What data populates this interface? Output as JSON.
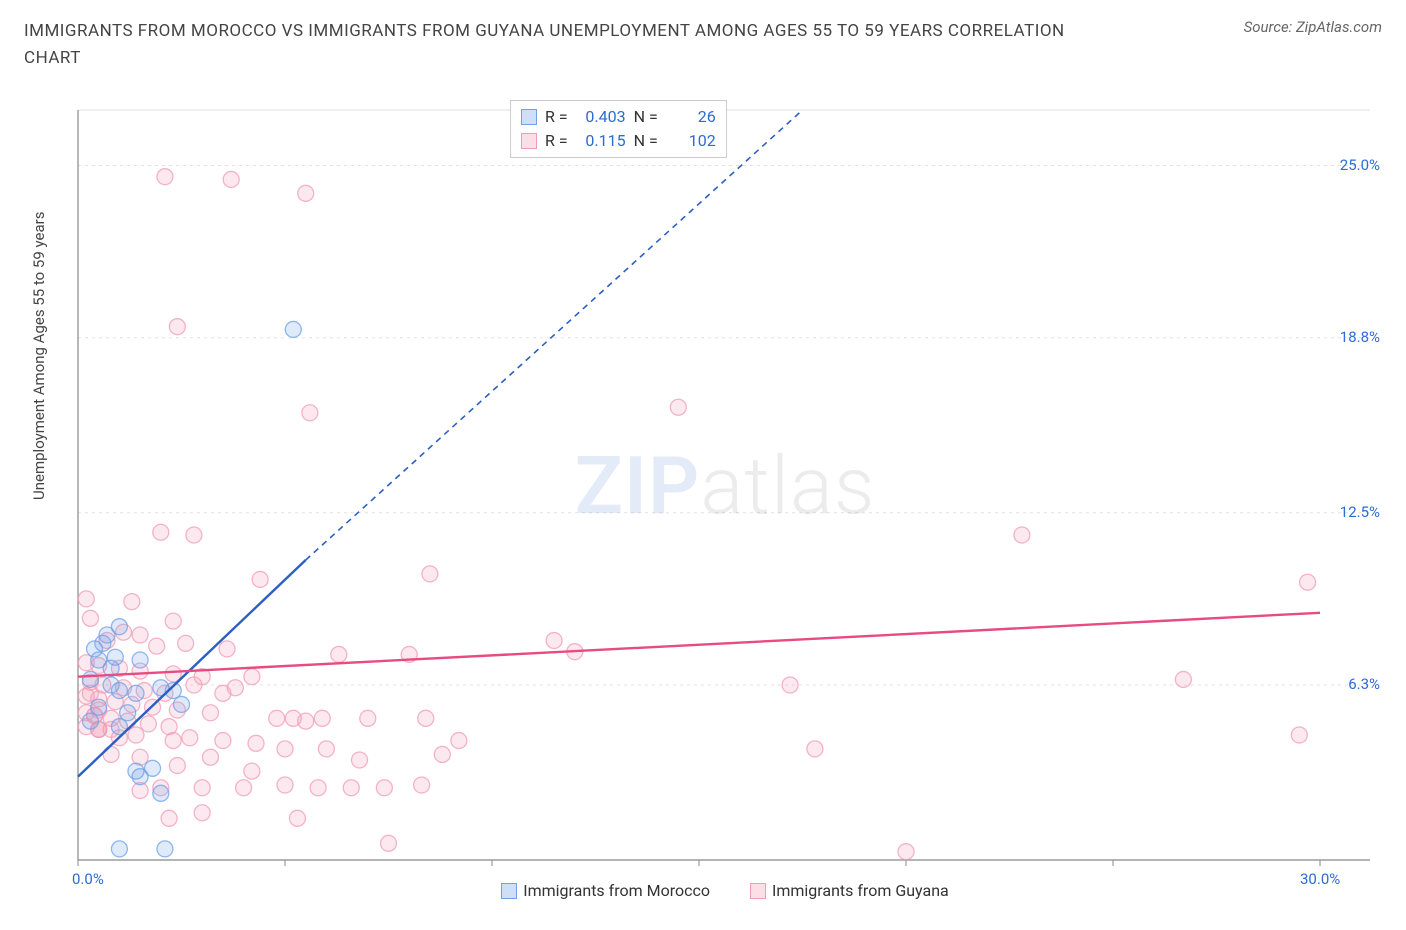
{
  "title": "IMMIGRANTS FROM MOROCCO VS IMMIGRANTS FROM GUYANA UNEMPLOYMENT AMONG AGES 55 TO 59 YEARS CORRELATION CHART",
  "source": "Source: ZipAtlas.com",
  "y_axis_label": "Unemployment Among Ages 55 to 59 years",
  "watermark": {
    "bold": "ZIP",
    "light": "atlas"
  },
  "chart": {
    "type": "scatter",
    "background_color": "#ffffff",
    "grid_color": "#e2e2e2",
    "axis_color": "#888888",
    "tick_label_color": "#2b6cd4",
    "xlim": [
      0,
      30
    ],
    "ylim": [
      0,
      27
    ],
    "x_ticks": [
      0,
      5,
      10,
      15,
      20,
      25,
      30
    ],
    "x_tick_labels": [
      "0.0%",
      "",
      "",
      "",
      "",
      "",
      "30.0%"
    ],
    "y_grid_values": [
      6.3,
      12.5,
      18.8,
      25.0
    ],
    "y_tick_labels": [
      "6.3%",
      "12.5%",
      "18.8%",
      "25.0%"
    ],
    "marker_radius": 8,
    "marker_fill_opacity": 0.22,
    "marker_stroke_width": 1.3,
    "trend_line_width": 2.4,
    "trend_dash": "6,5"
  },
  "series": [
    {
      "name": "Immigrants from Morocco",
      "color": "#6f9fe8",
      "line_color": "#2b5fc4",
      "stats": {
        "R": "0.403",
        "N": "26"
      },
      "trend": {
        "x1": 0,
        "y1": 3.0,
        "x2_solid": 5.5,
        "y2_solid": 10.8,
        "x2": 17.5,
        "y2": 27.0
      },
      "points": [
        [
          5.2,
          19.1
        ],
        [
          1.0,
          8.4
        ],
        [
          0.7,
          8.1
        ],
        [
          0.6,
          7.8
        ],
        [
          0.9,
          7.3
        ],
        [
          0.5,
          7.2
        ],
        [
          1.5,
          7.2
        ],
        [
          0.3,
          6.5
        ],
        [
          0.8,
          6.3
        ],
        [
          1.0,
          6.1
        ],
        [
          1.4,
          6.0
        ],
        [
          2.3,
          6.1
        ],
        [
          2.5,
          5.6
        ],
        [
          0.5,
          5.5
        ],
        [
          0.3,
          5.0
        ],
        [
          1.4,
          3.2
        ],
        [
          1.5,
          3.0
        ],
        [
          1.8,
          3.3
        ],
        [
          2.0,
          2.4
        ],
        [
          1.0,
          0.4
        ],
        [
          2.1,
          0.4
        ],
        [
          1.0,
          4.8
        ],
        [
          2.0,
          6.2
        ],
        [
          0.8,
          6.9
        ],
        [
          0.4,
          7.6
        ],
        [
          1.2,
          5.3
        ]
      ]
    },
    {
      "name": "Immigrants from Guyana",
      "color": "#f29bb5",
      "line_color": "#e74b82",
      "stats": {
        "R": "0.115",
        "N": "102"
      },
      "trend": {
        "x1": 0,
        "y1": 6.6,
        "x2_solid": 30,
        "y2_solid": 8.9,
        "x2": 30,
        "y2": 8.9
      },
      "points": [
        [
          2.1,
          24.6
        ],
        [
          3.7,
          24.5
        ],
        [
          5.5,
          24.0
        ],
        [
          2.4,
          19.2
        ],
        [
          5.6,
          16.1
        ],
        [
          14.5,
          16.3
        ],
        [
          2.0,
          11.8
        ],
        [
          2.8,
          11.7
        ],
        [
          22.8,
          11.7
        ],
        [
          29.7,
          10.0
        ],
        [
          26.7,
          6.5
        ],
        [
          17.2,
          6.3
        ],
        [
          20.0,
          0.3
        ],
        [
          29.5,
          4.5
        ],
        [
          17.8,
          4.0
        ],
        [
          11.5,
          7.9
        ],
        [
          12.0,
          7.5
        ],
        [
          0.2,
          9.4
        ],
        [
          1.3,
          9.3
        ],
        [
          0.3,
          8.7
        ],
        [
          2.3,
          8.6
        ],
        [
          1.1,
          8.2
        ],
        [
          1.5,
          8.1
        ],
        [
          4.4,
          10.1
        ],
        [
          8.5,
          10.3
        ],
        [
          0.7,
          7.9
        ],
        [
          1.9,
          7.7
        ],
        [
          2.6,
          7.8
        ],
        [
          3.6,
          7.6
        ],
        [
          6.3,
          7.4
        ],
        [
          8.0,
          7.4
        ],
        [
          0.2,
          7.1
        ],
        [
          0.5,
          7.0
        ],
        [
          1.0,
          6.9
        ],
        [
          1.5,
          6.8
        ],
        [
          2.3,
          6.7
        ],
        [
          3.0,
          6.6
        ],
        [
          3.8,
          6.2
        ],
        [
          0.3,
          6.4
        ],
        [
          0.6,
          6.3
        ],
        [
          1.1,
          6.2
        ],
        [
          1.6,
          6.1
        ],
        [
          2.1,
          6.0
        ],
        [
          2.8,
          6.3
        ],
        [
          4.2,
          6.6
        ],
        [
          0.2,
          5.9
        ],
        [
          0.5,
          5.8
        ],
        [
          0.9,
          5.7
        ],
        [
          1.3,
          5.6
        ],
        [
          1.8,
          5.5
        ],
        [
          2.4,
          5.4
        ],
        [
          3.2,
          5.3
        ],
        [
          0.2,
          5.3
        ],
        [
          0.4,
          5.2
        ],
        [
          0.8,
          5.1
        ],
        [
          1.2,
          5.0
        ],
        [
          1.7,
          4.9
        ],
        [
          2.2,
          4.8
        ],
        [
          5.5,
          5.0
        ],
        [
          0.2,
          4.8
        ],
        [
          0.5,
          4.7
        ],
        [
          0.8,
          4.7
        ],
        [
          1.4,
          4.5
        ],
        [
          2.7,
          4.4
        ],
        [
          2.3,
          4.3
        ],
        [
          3.5,
          4.3
        ],
        [
          4.3,
          4.2
        ],
        [
          4.8,
          5.1
        ],
        [
          5.2,
          5.1
        ],
        [
          5.9,
          5.1
        ],
        [
          7.0,
          5.1
        ],
        [
          8.4,
          5.1
        ],
        [
          9.2,
          4.3
        ],
        [
          3.2,
          3.7
        ],
        [
          4.2,
          3.2
        ],
        [
          1.5,
          3.7
        ],
        [
          2.4,
          3.4
        ],
        [
          0.8,
          3.8
        ],
        [
          0.5,
          4.7
        ],
        [
          1.5,
          2.5
        ],
        [
          2.0,
          2.6
        ],
        [
          3.0,
          2.6
        ],
        [
          4.0,
          2.6
        ],
        [
          5.0,
          2.7
        ],
        [
          5.8,
          2.6
        ],
        [
          6.6,
          2.6
        ],
        [
          7.4,
          2.6
        ],
        [
          8.3,
          2.7
        ],
        [
          5.3,
          1.5
        ],
        [
          3.0,
          1.7
        ],
        [
          2.2,
          1.5
        ],
        [
          0.5,
          4.7
        ],
        [
          0.4,
          5.2
        ],
        [
          7.5,
          0.6
        ],
        [
          5.0,
          4.0
        ],
        [
          6.0,
          4.0
        ],
        [
          6.8,
          3.6
        ],
        [
          8.8,
          3.8
        ],
        [
          0.3,
          6.0
        ],
        [
          0.5,
          5.4
        ],
        [
          1.0,
          4.4
        ],
        [
          3.5,
          6.0
        ]
      ]
    }
  ],
  "legend": {
    "items": [
      "Immigrants from Morocco",
      "Immigrants from Guyana"
    ]
  },
  "stats_labels": {
    "R": "R =",
    "N": "N ="
  }
}
